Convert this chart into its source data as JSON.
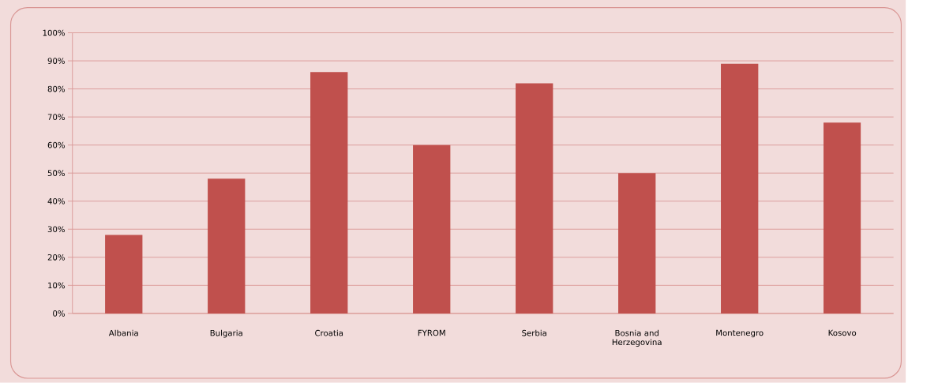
{
  "chart_data": {
    "type": "bar",
    "categories": [
      "Albania",
      "Bulgaria",
      "Croatia",
      "FYROM",
      "Serbia",
      "Bosnia and Herzegovina",
      "Montenegro",
      "Kosovo"
    ],
    "values": [
      28,
      48,
      86,
      60,
      82,
      50,
      89,
      68
    ],
    "color": "#c0504d",
    "ylim": [
      0,
      100
    ],
    "yticks": [
      {
        "value": 0,
        "label": "0%"
      },
      {
        "value": 10,
        "label": "10%"
      },
      {
        "value": 20,
        "label": "20%"
      },
      {
        "value": 30,
        "label": "30%"
      },
      {
        "value": 40,
        "label": "40%"
      },
      {
        "value": 50,
        "label": "50%"
      },
      {
        "value": 60,
        "label": "60%"
      },
      {
        "value": 70,
        "label": "70%"
      },
      {
        "value": 80,
        "label": "80%"
      },
      {
        "value": 90,
        "label": "90%"
      },
      {
        "value": 100,
        "label": "100%"
      }
    ],
    "grid": "y"
  }
}
